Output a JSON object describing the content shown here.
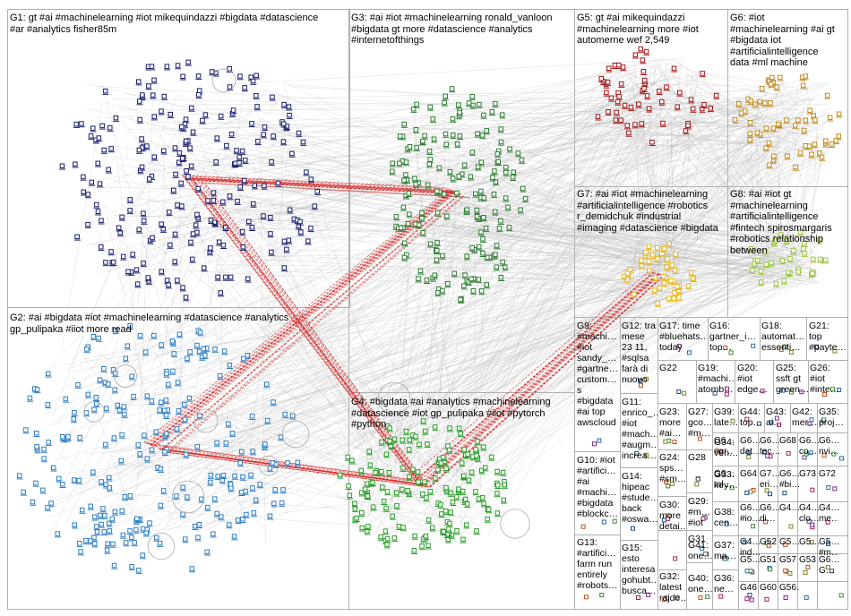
{
  "groups": [
    {
      "id": "G1",
      "label": "G1: gt #ai #machinelearning #iot mikequindazzi #bigdata #datascience\n#ar #analytics fisher85m"
    },
    {
      "id": "G2",
      "label": "G2: #ai #bigdata #iot #machinelearning #datascience #analytics\ngp_pulipaka #iiot more read"
    },
    {
      "id": "G3",
      "label": "G3: #ai #iot #machinelearning ronald_vanloon\n#bigdata gt more #datascience #analytics\n#internetofthings"
    },
    {
      "id": "G4",
      "label": "G4: #bigdata #ai #analytics #machinelearning\n#datascience #iot gp_pulipaka #iiot #pytorch\n#python"
    },
    {
      "id": "G5",
      "label": "G5: gt #ai mikequindazzi\n#machinelearning more #iot\nautomerne wef 2,549"
    },
    {
      "id": "G6",
      "label": "G6: #iot\n#machinelearning #ai gt\n#bigdata iot\n#artificialintelligence\ndata #ml machine"
    },
    {
      "id": "G7",
      "label": "G7: #ai #iot #machinelearning\n#artificialintelligence #robotics\nr_demidchuk #industrial\n#imaging #datascience #bigdata"
    },
    {
      "id": "G8",
      "label": "G8: #ai #iot gt\n#machinelearning\n#artificialintelligence\n#fintech spirosmargaris\n#robotics relationship\nbetween"
    },
    {
      "id": "G9",
      "label": "G9:\n#machi…\n#iot\nsandy_…\n#gartne…\ncustom…\ns\n#bigdata\n#ai top\nawscloud"
    },
    {
      "id": "G10",
      "label": "G10: #iot\n#artifici…\n#ai\n#machi…\n#bigdata\n#blockc…"
    },
    {
      "id": "G11",
      "label": "G11:\nenrico_…\n#iot\n#mach…\n#augm…\nincrea…"
    },
    {
      "id": "G12",
      "label": "G12: tra\nmese\n23 11,\n#sqlsa\nfarà di\nnuovo"
    },
    {
      "id": "G13",
      "label": "G13:\n#artifici…\nfarm run\nentirely\n#robots…"
    },
    {
      "id": "G14",
      "label": "G14:\nhipeac\n#stude…\nback\n#oswa…"
    },
    {
      "id": "G15",
      "label": "G15:\nesto\ninteresa\ngohubt…\nbusca…"
    },
    {
      "id": "G16",
      "label": "G16:\ngartner_i…\ntop…"
    },
    {
      "id": "G17",
      "label": "G17: time\n#bluehats…\ntoday"
    },
    {
      "id": "G18",
      "label": "G18:\nautomat…\nessenti…"
    },
    {
      "id": "G19",
      "label": "G19:\n#machi…\natomb…"
    },
    {
      "id": "G20",
      "label": "G20:\n#iot\nedge…"
    },
    {
      "id": "G21",
      "label": "G21:\ntop\n#payte…"
    },
    {
      "id": "G22",
      "label": "G22"
    },
    {
      "id": "G23",
      "label": "G23:\nmore\n#ai…"
    },
    {
      "id": "G24",
      "label": "G24:\nsps…\n#sm…"
    },
    {
      "id": "G25",
      "label": "G25:\nssft gt\ngreen…"
    },
    {
      "id": "G26",
      "label": "G26:\n#iot\n#inte…"
    },
    {
      "id": "G27",
      "label": "G27:\ngco…\n#m…"
    },
    {
      "id": "G28",
      "label": "G28"
    },
    {
      "id": "G29",
      "label": "G29:\n#m…\n#iot"
    },
    {
      "id": "G30",
      "label": "G30:\nmore\ndetai…"
    },
    {
      "id": "G31",
      "label": "G31"
    },
    {
      "id": "G32",
      "label": "G32:\nlatest\nrajde…"
    },
    {
      "id": "G33",
      "label": "G33:\nkey…"
    },
    {
      "id": "G34",
      "label": "G34:\nven…"
    },
    {
      "id": "G35",
      "label": "G35:\nproj…"
    },
    {
      "id": "G36",
      "label": "G36:\nne…"
    },
    {
      "id": "G37",
      "label": "G37:\nma…"
    },
    {
      "id": "G38",
      "label": "G38:\ncen…"
    },
    {
      "id": "G39",
      "label": "G39:\nlate…"
    },
    {
      "id": "G40",
      "label": "G40:\none…"
    },
    {
      "id": "G41",
      "label": "G41:\none…"
    },
    {
      "id": "G42",
      "label": "G42:\nmer…"
    },
    {
      "id": "G43",
      "label": "G43:\nai…"
    },
    {
      "id": "G44",
      "label": "G44:\ntop…"
    }
  ],
  "tiny_labels": [
    "G6…\n#gr…",
    "G6…\ndat…",
    "G6…\ntec…",
    "G68",
    "G6…\nco…",
    "G6…\nnvi…",
    "G6…\nml…",
    "G64",
    "G7…\neri…",
    "G6…\n#bi…",
    "G73",
    "G72",
    "G6…\n#io…",
    "G6…\ndi…",
    "G4…",
    "G4…\nclo…",
    "G4…\nme…",
    "G4…\nind…",
    "G52",
    "G5…",
    "G5…",
    "G5…\n#m…",
    "G5…",
    "G51",
    "G57",
    "G53",
    "G6…\nG…",
    "G46",
    "G60",
    "G56…"
  ],
  "colors": {
    "g1": "#1a1f6e",
    "g2": "#2f7fc4",
    "g3": "#2e7d32",
    "g4": "#2a9d2a",
    "g5": "#a31515",
    "g6": "#c08a1e",
    "g7": "#e6b820",
    "g8": "#9bc53d",
    "edge_gray": "#b8b8b8",
    "edge_red": "#d42020",
    "frame": "#b0b0b0"
  }
}
